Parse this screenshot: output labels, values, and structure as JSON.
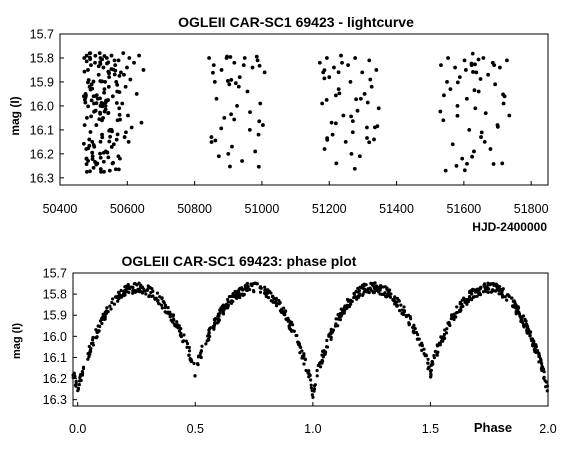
{
  "chart_data": [
    {
      "type": "scatter",
      "title": "OGLEII CAR-SC1 69423 - lightcurve",
      "xlabel": "HJD-2400000",
      "ylabel": "mag (I)",
      "xlim": [
        50400,
        51850
      ],
      "ylim": [
        16.33,
        15.7
      ],
      "y_inverted": true,
      "grid": false,
      "xticks": [
        "50400",
        "50600",
        "50800",
        "51000",
        "51200",
        "51400",
        "51600",
        "51800"
      ],
      "yticks": [
        "15.7",
        "15.8",
        "15.9",
        "16.0",
        "16.1",
        "16.2",
        "16.3"
      ],
      "marker_color": "#000000",
      "season_windows": [
        [
          50470,
          50650
        ],
        [
          50840,
          51010
        ],
        [
          51170,
          51350
        ],
        [
          51530,
          51740
        ]
      ],
      "points": [
        [
          50472,
          15.8
        ],
        [
          50476,
          15.95
        ],
        [
          50480,
          16.05
        ],
        [
          50483,
          15.85
        ],
        [
          50487,
          16.14
        ],
        [
          50490,
          15.78
        ],
        [
          50494,
          15.91
        ],
        [
          50497,
          16.21
        ],
        [
          50501,
          15.99
        ],
        [
          50504,
          15.82
        ],
        [
          50508,
          16.08
        ],
        [
          50511,
          16.24
        ],
        [
          50515,
          15.87
        ],
        [
          50518,
          15.78
        ],
        [
          50522,
          16.0
        ],
        [
          50525,
          16.12
        ],
        [
          50529,
          15.84
        ],
        [
          50532,
          15.93
        ],
        [
          50536,
          16.19
        ],
        [
          50539,
          15.8
        ],
        [
          50543,
          16.03
        ],
        [
          50546,
          15.88
        ],
        [
          50550,
          16.1
        ],
        [
          50553,
          15.79
        ],
        [
          50557,
          15.96
        ],
        [
          50560,
          16.16
        ],
        [
          50564,
          15.83
        ],
        [
          50567,
          15.9
        ],
        [
          50571,
          16.06
        ],
        [
          50574,
          15.81
        ],
        [
          50578,
          16.22
        ],
        [
          50581,
          15.86
        ],
        [
          50585,
          15.99
        ],
        [
          50588,
          15.78
        ],
        [
          50592,
          16.13
        ],
        [
          50595,
          15.92
        ],
        [
          50599,
          15.84
        ],
        [
          50602,
          16.04
        ],
        [
          50606,
          15.8
        ],
        [
          50609,
          15.89
        ],
        [
          50613,
          16.09
        ],
        [
          50620,
          15.82
        ],
        [
          50628,
          15.95
        ],
        [
          50635,
          15.79
        ],
        [
          50642,
          16.07
        ],
        [
          50648,
          15.85
        ],
        [
          50478,
          16.18
        ],
        [
          50492,
          15.83
        ],
        [
          50506,
          16.02
        ],
        [
          50520,
          15.8
        ],
        [
          50534,
          15.9
        ],
        [
          50548,
          16.27
        ],
        [
          50562,
          15.81
        ],
        [
          50576,
          16.01
        ],
        [
          50590,
          15.87
        ],
        [
          50604,
          16.15
        ],
        [
          50488,
          15.92
        ],
        [
          50512,
          15.97
        ],
        [
          50528,
          16.05
        ],
        [
          50556,
          16.24
        ],
        [
          50570,
          15.94
        ],
        [
          50596,
          16.11
        ],
        [
          50843,
          15.8
        ],
        [
          50850,
          16.13
        ],
        [
          50857,
          15.83
        ],
        [
          50865,
          15.97
        ],
        [
          50872,
          16.21
        ],
        [
          50880,
          15.85
        ],
        [
          50888,
          16.05
        ],
        [
          50895,
          15.8
        ],
        [
          50903,
          15.91
        ],
        [
          50911,
          16.17
        ],
        [
          50918,
          15.82
        ],
        [
          50926,
          16.0
        ],
        [
          50934,
          15.88
        ],
        [
          50941,
          16.23
        ],
        [
          50949,
          15.8
        ],
        [
          50957,
          15.94
        ],
        [
          50964,
          16.1
        ],
        [
          50972,
          15.84
        ],
        [
          50980,
          16.19
        ],
        [
          50987,
          15.81
        ],
        [
          50995,
          15.99
        ],
        [
          51003,
          16.08
        ],
        [
          51008,
          15.86
        ],
        [
          50860,
          15.9
        ],
        [
          50900,
          16.2
        ],
        [
          50946,
          15.83
        ],
        [
          50990,
          16.12
        ],
        [
          51172,
          15.82
        ],
        [
          51179,
          15.99
        ],
        [
          51186,
          16.18
        ],
        [
          51193,
          15.8
        ],
        [
          51200,
          15.88
        ],
        [
          51207,
          16.07
        ],
        [
          51214,
          15.84
        ],
        [
          51221,
          16.24
        ],
        [
          51228,
          15.93
        ],
        [
          51235,
          15.79
        ],
        [
          51242,
          16.04
        ],
        [
          51249,
          16.15
        ],
        [
          51256,
          15.83
        ],
        [
          51263,
          15.9
        ],
        [
          51270,
          16.11
        ],
        [
          51277,
          15.8
        ],
        [
          51284,
          16.02
        ],
        [
          51291,
          16.21
        ],
        [
          51298,
          15.86
        ],
        [
          51305,
          15.95
        ],
        [
          51312,
          16.09
        ],
        [
          51319,
          15.81
        ],
        [
          51326,
          15.92
        ],
        [
          51333,
          16.14
        ],
        [
          51340,
          15.85
        ],
        [
          51347,
          16.01
        ],
        [
          51182,
          15.86
        ],
        [
          51210,
          16.12
        ],
        [
          51238,
          15.82
        ],
        [
          51266,
          16.2
        ],
        [
          51294,
          15.97
        ],
        [
          51322,
          15.89
        ],
        [
          51532,
          15.83
        ],
        [
          51539,
          16.06
        ],
        [
          51546,
          16.27
        ],
        [
          51553,
          15.8
        ],
        [
          51560,
          15.93
        ],
        [
          51567,
          16.16
        ],
        [
          51574,
          15.84
        ],
        [
          51581,
          16.0
        ],
        [
          51588,
          15.88
        ],
        [
          51595,
          16.22
        ],
        [
          51602,
          15.81
        ],
        [
          51609,
          15.97
        ],
        [
          51616,
          16.1
        ],
        [
          51623,
          15.83
        ],
        [
          51630,
          16.19
        ],
        [
          51637,
          15.86
        ],
        [
          51644,
          15.94
        ],
        [
          51651,
          16.13
        ],
        [
          51658,
          15.8
        ],
        [
          51665,
          16.03
        ],
        [
          51672,
          15.87
        ],
        [
          51679,
          16.18
        ],
        [
          51686,
          15.82
        ],
        [
          51693,
          15.91
        ],
        [
          51700,
          16.08
        ],
        [
          51707,
          15.84
        ],
        [
          51714,
          16.24
        ],
        [
          51721,
          15.96
        ],
        [
          51728,
          15.81
        ],
        [
          51735,
          16.04
        ],
        [
          51550,
          15.9
        ],
        [
          51578,
          16.25
        ],
        [
          51606,
          15.85
        ],
        [
          51634,
          16.01
        ],
        [
          51662,
          16.15
        ],
        [
          51690,
          15.83
        ],
        [
          51718,
          15.99
        ]
      ]
    },
    {
      "type": "scatter",
      "title": "OGLEII CAR-SC1 69423: phase plot",
      "xlabel": "Phase",
      "ylabel": "mag (I)",
      "xlim": [
        -0.02,
        2.0
      ],
      "ylim": [
        16.33,
        15.7
      ],
      "y_inverted": true,
      "grid": false,
      "xticks": [
        "0.0",
        "0.5",
        "1.0",
        "1.5",
        "2.0"
      ],
      "yticks": [
        "15.7",
        "15.8",
        "15.9",
        "16.0",
        "16.1",
        "16.2",
        "16.3"
      ],
      "marker_color": "#000000",
      "curve": {
        "maxima_phase": [
          0.25,
          0.75,
          1.25,
          1.75
        ],
        "max_mag": 15.77,
        "minima_phase": [
          0.0,
          0.5,
          1.0,
          1.5,
          2.0
        ],
        "min_mag_primary": 16.28,
        "min_mag_secondary": 16.18,
        "shape_exponent": 0.75,
        "scatter_mag": 0.025
      }
    }
  ]
}
